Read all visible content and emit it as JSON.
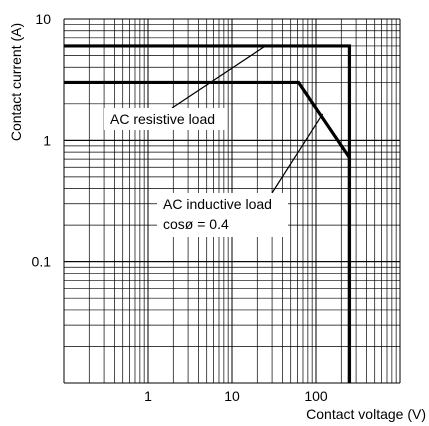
{
  "chart_data": {
    "type": "line",
    "xlabel": "Contact voltage (V)",
    "ylabel": "Contact current (A)",
    "x_scale": "log",
    "y_scale": "log",
    "xlim": [
      0.1,
      1000
    ],
    "ylim": [
      0.01,
      10
    ],
    "x_ticks": [
      {
        "value": 1,
        "label": "1"
      },
      {
        "value": 10,
        "label": "10"
      },
      {
        "value": 100,
        "label": "100"
      }
    ],
    "y_ticks": [
      {
        "value": 10,
        "label": "10"
      },
      {
        "value": 1,
        "label": "1"
      },
      {
        "value": 0.1,
        "label": "0.1"
      }
    ],
    "grid": true,
    "series": [
      {
        "name": "AC resistive load",
        "x": [
          0.1,
          250,
          250
        ],
        "y": [
          6,
          6,
          0.01
        ]
      },
      {
        "name": "AC inductive load cosø = 0.4",
        "x": [
          0.1,
          62,
          250,
          250
        ],
        "y": [
          3,
          3,
          0.72,
          0.01
        ]
      }
    ],
    "annotations": [
      {
        "lines": [
          "AC resistive load"
        ],
        "target_series": 0
      },
      {
        "lines": [
          "AC inductive load",
          "cosø = 0.4"
        ],
        "target_series": 1
      }
    ]
  }
}
